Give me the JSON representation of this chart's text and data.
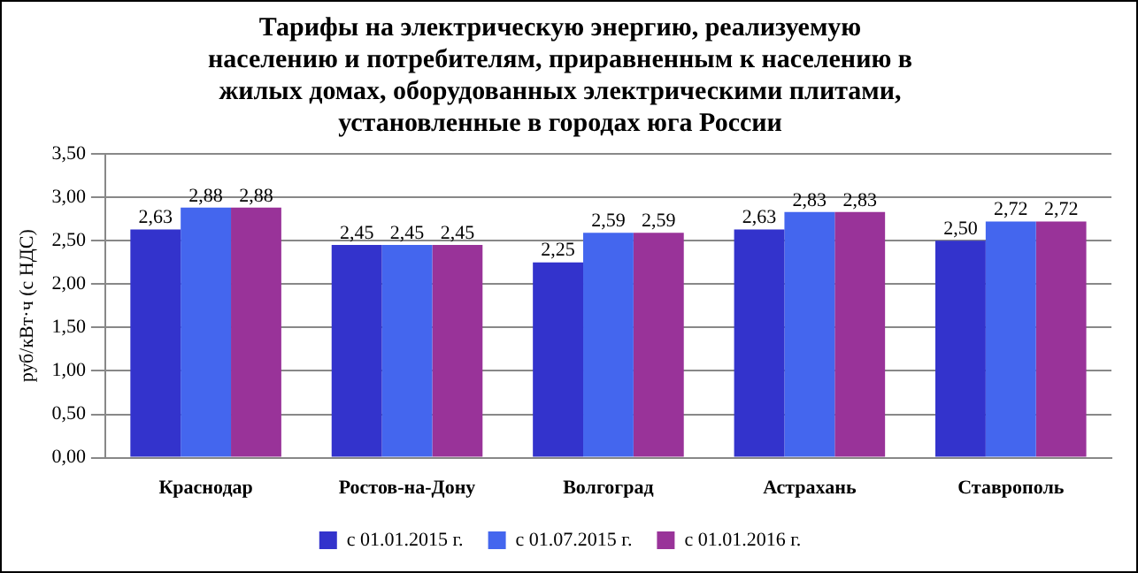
{
  "chart_data": {
    "type": "bar",
    "title": "Тарифы на электрическую энергию, реализуемую\nнаселению и потребителям, приравненным к населению в\nжилых домах, оборудованных электрическими плитами,\nустановленные в городах юга России",
    "ylabel": "руб/кВт·ч (с НДС)",
    "categories": [
      "Краснодар",
      "Ростов-на-Дону",
      "Волгоград",
      "Астрахань",
      "Ставрополь"
    ],
    "series": [
      {
        "name": "с 01.01.2015 г.",
        "color": "#3333cc",
        "values": [
          2.63,
          2.45,
          2.25,
          2.63,
          2.5
        ],
        "value_labels": [
          "2,63",
          "2,45",
          "2,25",
          "2,63",
          "2,50"
        ]
      },
      {
        "name": "с 01.07.2015 г.",
        "color": "#4466ee",
        "values": [
          2.88,
          2.45,
          2.59,
          2.83,
          2.72
        ],
        "value_labels": [
          "2,88",
          "2,45",
          "2,59",
          "2,83",
          "2,72"
        ]
      },
      {
        "name": "с 01.01.2016 г.",
        "color": "#993399",
        "values": [
          2.88,
          2.45,
          2.59,
          2.83,
          2.72
        ],
        "value_labels": [
          "2,88",
          "2,45",
          "2,59",
          "2,83",
          "2,72"
        ]
      }
    ],
    "ylim": [
      0,
      3.5
    ],
    "yticks": [
      {
        "value": 0,
        "label": "0,00"
      },
      {
        "value": 0.5,
        "label": "0,50"
      },
      {
        "value": 1,
        "label": "1,00"
      },
      {
        "value": 1.5,
        "label": "1,50"
      },
      {
        "value": 2,
        "label": "2,00"
      },
      {
        "value": 2.5,
        "label": "2,50"
      },
      {
        "value": 3,
        "label": "3,00"
      },
      {
        "value": 3.5,
        "label": "3,50"
      }
    ],
    "grid": "y",
    "legend": "bottom"
  }
}
